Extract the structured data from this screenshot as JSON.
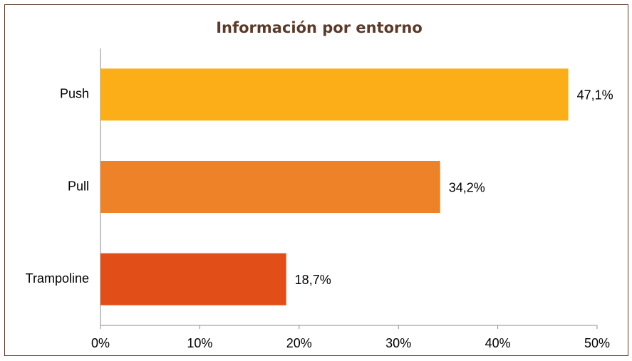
{
  "chart_data": {
    "type": "bar",
    "orientation": "horizontal",
    "title": "Información por entorno",
    "categories": [
      "Push",
      "Pull",
      "Trampoline"
    ],
    "values": [
      47.1,
      34.2,
      18.7
    ],
    "value_labels": [
      "47,1%",
      "34,2%",
      "18,7%"
    ],
    "colors": [
      "#fbae17",
      "#ee8228",
      "#e24e17"
    ],
    "xlim": [
      0,
      50
    ],
    "xticks": [
      {
        "value": 0,
        "label": "0%"
      },
      {
        "value": 10,
        "label": "10%"
      },
      {
        "value": 20,
        "label": "20%"
      },
      {
        "value": 30,
        "label": "30%"
      },
      {
        "value": 40,
        "label": "40%"
      },
      {
        "value": 50,
        "label": "50%"
      }
    ],
    "grid": false
  }
}
